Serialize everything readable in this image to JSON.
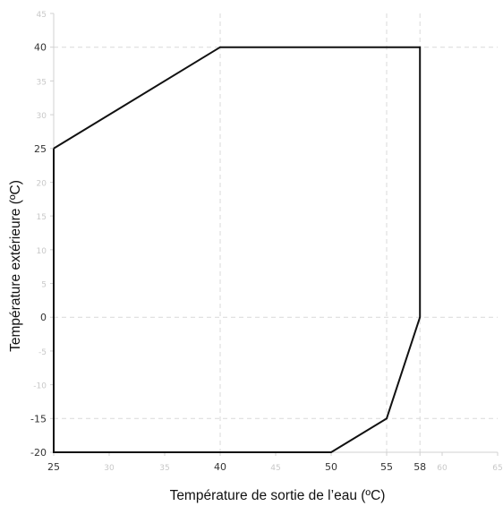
{
  "chart_data": {
    "type": "line",
    "xlabel": "Température de sortie de l’eau (ºC)",
    "ylabel": "Température extérieure (ºC)",
    "xlim": [
      25,
      65
    ],
    "ylim": [
      -20,
      45
    ],
    "x_ticks": [
      {
        "value": 25,
        "label": "25",
        "major": true
      },
      {
        "value": 30,
        "label": "30",
        "major": false
      },
      {
        "value": 35,
        "label": "35",
        "major": false
      },
      {
        "value": 40,
        "label": "40",
        "major": true
      },
      {
        "value": 45,
        "label": "45",
        "major": false
      },
      {
        "value": 50,
        "label": "50",
        "major": true
      },
      {
        "value": 55,
        "label": "55",
        "major": true
      },
      {
        "value": 58,
        "label": "58",
        "major": true
      },
      {
        "value": 60,
        "label": "60",
        "major": false
      },
      {
        "value": 65,
        "label": "65",
        "major": false
      }
    ],
    "y_ticks": [
      {
        "value": -20,
        "label": "-20",
        "major": true
      },
      {
        "value": -15,
        "label": "-15",
        "major": true
      },
      {
        "value": -10,
        "label": "-10",
        "major": false
      },
      {
        "value": -5,
        "label": "-5",
        "major": false
      },
      {
        "value": 0,
        "label": "0",
        "major": true
      },
      {
        "value": 5,
        "label": "5",
        "major": false
      },
      {
        "value": 10,
        "label": "10",
        "major": false
      },
      {
        "value": 15,
        "label": "15",
        "major": false
      },
      {
        "value": 20,
        "label": "20",
        "major": false
      },
      {
        "value": 25,
        "label": "25",
        "major": true
      },
      {
        "value": 30,
        "label": "30",
        "major": false
      },
      {
        "value": 35,
        "label": "35",
        "major": false
      },
      {
        "value": 40,
        "label": "40",
        "major": true
      },
      {
        "value": 45,
        "label": "45",
        "major": false
      }
    ],
    "grid_x": [
      40,
      55,
      58
    ],
    "grid_y": [
      40,
      0,
      -15
    ],
    "series": [
      {
        "points": [
          {
            "x": 25,
            "y": 25
          },
          {
            "x": 40,
            "y": 40
          },
          {
            "x": 58,
            "y": 40
          },
          {
            "x": 58,
            "y": 0
          },
          {
            "x": 55,
            "y": -15
          },
          {
            "x": 50,
            "y": -20
          },
          {
            "x": 25,
            "y": -20
          },
          {
            "x": 25,
            "y": 25
          }
        ],
        "color": "#111111"
      }
    ],
    "grid": "dashed",
    "legend": "none"
  }
}
